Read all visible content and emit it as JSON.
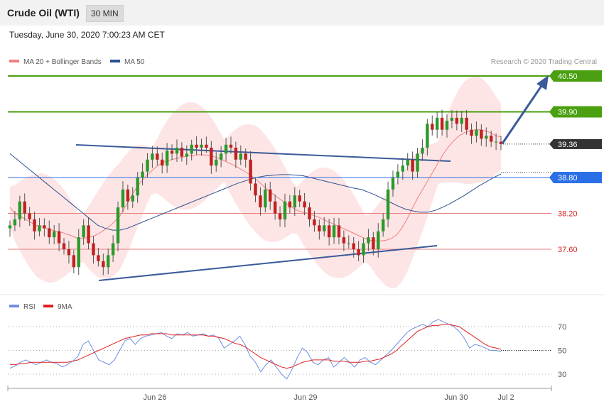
{
  "header": {
    "title": "Crude Oil (WTI)",
    "interval": "30 MIN",
    "datetime": "Tuesday, June 30, 2020 7:00:23 AM CET"
  },
  "legend": {
    "ma20": "MA 20 + Bollinger Bands",
    "ma50": "MA 50",
    "credit": "Research © 2020 Trading Central",
    "rsi": "RSI",
    "rsi_ma": "9MA"
  },
  "colors": {
    "ma20": "#f08080",
    "band": "#fde0e0",
    "ma50": "#2c4f8f",
    "target": "#4aa010",
    "pivot": "#2a6fe6",
    "support": "#e88080",
    "support_text": "#d02020",
    "price": "#333333",
    "up": "#2a9a2a",
    "down": "#c02020",
    "rsi": "#6f8fe0",
    "rsi_ma": "#e02020"
  },
  "chart_data": [
    {
      "type": "candlestick",
      "title": "Crude Oil (WTI)",
      "timeframe": "30 MIN",
      "x_tick_labels": [
        "Jun 26",
        "Jun 29",
        "Jun 30",
        "Jul 2"
      ],
      "ylim": [
        36.8,
        40.6
      ],
      "levels": [
        {
          "value": 40.5,
          "label": "40.50",
          "kind": "target"
        },
        {
          "value": 39.9,
          "label": "39.90",
          "kind": "target"
        },
        {
          "value": 39.36,
          "label": "39.36",
          "kind": "price"
        },
        {
          "value": 38.8,
          "label": "38.80",
          "kind": "pivot"
        },
        {
          "value": 38.2,
          "label": "38.20",
          "kind": "support"
        },
        {
          "value": 37.6,
          "label": "37.60",
          "kind": "support"
        }
      ],
      "close": [
        38.0,
        38.1,
        38.4,
        38.2,
        38.1,
        37.9,
        38.0,
        37.95,
        37.8,
        37.9,
        37.7,
        37.6,
        37.5,
        37.3,
        37.8,
        38.0,
        37.7,
        37.5,
        37.4,
        37.3,
        37.5,
        37.7,
        38.3,
        38.6,
        38.4,
        38.5,
        38.8,
        38.9,
        39.1,
        39.2,
        39.1,
        39.0,
        39.25,
        39.2,
        39.3,
        39.15,
        39.2,
        39.35,
        39.3,
        39.35,
        39.3,
        39.0,
        39.1,
        39.2,
        39.35,
        39.3,
        39.1,
        39.2,
        39.1,
        38.7,
        38.5,
        38.3,
        38.6,
        38.4,
        38.2,
        38.1,
        38.4,
        38.3,
        38.5,
        38.4,
        38.3,
        38.1,
        38.0,
        37.9,
        38.0,
        37.8,
        38.0,
        37.8,
        37.7,
        37.7,
        37.6,
        37.5,
        37.7,
        37.8,
        37.6,
        37.9,
        38.1,
        38.6,
        38.8,
        38.9,
        39.0,
        39.1,
        38.9,
        39.2,
        39.3,
        39.7,
        39.6,
        39.8,
        39.6,
        39.75,
        39.8,
        39.7,
        39.8,
        39.6,
        39.5,
        39.6,
        39.45,
        39.5,
        39.4,
        39.4,
        39.36
      ],
      "ma20": [
        38.3,
        38.2,
        38.15,
        38.1,
        38.05,
        38.0,
        37.98,
        37.95,
        37.92,
        37.9,
        37.88,
        37.85,
        37.82,
        37.78,
        37.78,
        37.8,
        37.82,
        37.86,
        37.92,
        37.98,
        38.06,
        38.15,
        38.3,
        38.45,
        38.6,
        38.72,
        38.82,
        38.9,
        38.98,
        39.04,
        39.08,
        39.1,
        39.12,
        39.14,
        39.16,
        39.17,
        39.18,
        39.18,
        39.17,
        39.15,
        39.12,
        39.08,
        39.04,
        39.0,
        38.95,
        38.9,
        38.84,
        38.78,
        38.7,
        38.62,
        38.55,
        38.48,
        38.42,
        38.36,
        38.3,
        38.25,
        38.22,
        38.2,
        38.17,
        38.14,
        38.1,
        38.06,
        38.02,
        37.98,
        37.94,
        37.9,
        37.86,
        37.82,
        37.78,
        37.75,
        37.74,
        37.74,
        37.75,
        37.78,
        37.84,
        37.95,
        38.1,
        38.28,
        38.45,
        38.6,
        38.75,
        38.9,
        39.05,
        39.2,
        39.32,
        39.42,
        39.5,
        39.55,
        39.58,
        39.6,
        39.6,
        39.58,
        39.55,
        39.5,
        39.48
      ],
      "ma50": [
        39.2,
        39.1,
        39.0,
        38.9,
        38.8,
        38.7,
        38.6,
        38.5,
        38.4,
        38.3,
        38.2,
        38.1,
        38.0,
        37.95,
        37.92,
        37.92,
        37.95,
        38.0,
        38.05,
        38.1,
        38.15,
        38.2,
        38.25,
        38.3,
        38.35,
        38.4,
        38.45,
        38.5,
        38.55,
        38.6,
        38.65,
        38.7,
        38.74,
        38.78,
        38.81,
        38.83,
        38.84,
        38.85,
        38.85,
        38.84,
        38.83,
        38.8,
        38.77,
        38.74,
        38.71,
        38.68,
        38.65,
        38.62,
        38.6,
        38.55,
        38.5,
        38.44,
        38.38,
        38.32,
        38.27,
        38.24,
        38.22,
        38.22,
        38.25,
        38.3,
        38.36,
        38.43,
        38.5,
        38.58,
        38.66,
        38.73,
        38.8,
        38.86
      ],
      "rsi": {
        "levels": [
          70,
          50,
          30
        ],
        "ylim": [
          20,
          80
        ],
        "rsi": [
          35,
          37,
          40,
          42,
          40,
          38,
          40,
          42,
          40,
          39,
          36,
          38,
          41,
          45,
          55,
          58,
          50,
          42,
          40,
          38,
          42,
          50,
          58,
          60,
          55,
          60,
          62,
          63,
          64,
          65,
          62,
          60,
          64,
          63,
          65,
          62,
          63,
          64,
          62,
          63,
          60,
          52,
          55,
          58,
          62,
          55,
          45,
          40,
          32,
          38,
          42,
          36,
          30,
          26,
          34,
          44,
          52,
          48,
          40,
          38,
          42,
          44,
          36,
          40,
          44,
          40,
          36,
          42,
          44,
          40,
          38,
          42,
          46,
          50,
          55,
          60,
          65,
          68,
          70,
          72,
          70,
          74,
          76,
          74,
          72,
          70,
          66,
          60,
          52,
          55,
          54,
          52,
          50,
          50,
          49
        ],
        "ma9": [
          38,
          38,
          39,
          39,
          40,
          40,
          40,
          40,
          40,
          40,
          40,
          40,
          41,
          42,
          44,
          46,
          48,
          50,
          52,
          54,
          56,
          58,
          60,
          61,
          62,
          63,
          63,
          64,
          64,
          64,
          64,
          63,
          63,
          63,
          63,
          63,
          63,
          63,
          62,
          62,
          61,
          60,
          58,
          56,
          55,
          53,
          50,
          47,
          44,
          42,
          40,
          38,
          36,
          35,
          36,
          38,
          40,
          41,
          42,
          42,
          42,
          42,
          41,
          41,
          41,
          40,
          40,
          40,
          41,
          41,
          42,
          43,
          45,
          47,
          50,
          54,
          58,
          62,
          66,
          68,
          70,
          71,
          71,
          72,
          72,
          71,
          70,
          67,
          64,
          61,
          58,
          55,
          53,
          52,
          51
        ]
      }
    }
  ]
}
